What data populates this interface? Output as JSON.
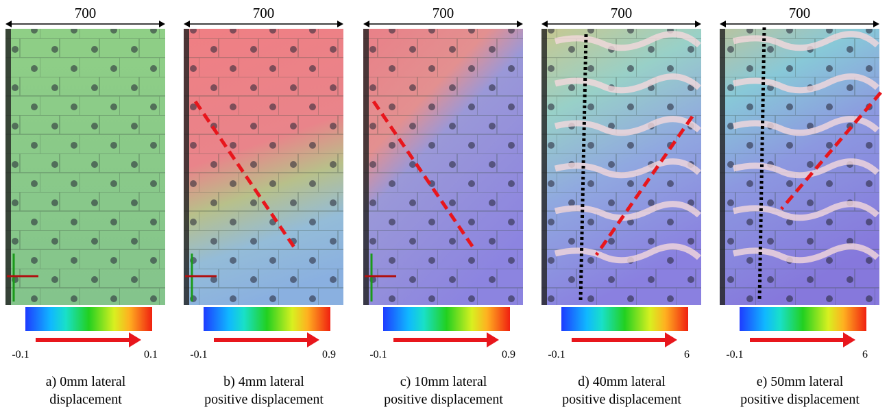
{
  "panels": [
    {
      "dimension": "700",
      "scale_min": "-0.1",
      "scale_max": "0.1",
      "caption": [
        "a) 0mm lateral",
        "displacement"
      ]
    },
    {
      "dimension": "700",
      "scale_min": "-0.1",
      "scale_max": "0.9",
      "caption": [
        "b) 4mm lateral",
        "positive displacement"
      ]
    },
    {
      "dimension": "700",
      "scale_min": "-0.1",
      "scale_max": "0.9",
      "caption": [
        "c) 10mm lateral",
        "positive displacement"
      ]
    },
    {
      "dimension": "700",
      "scale_min": "-0.1",
      "scale_max": "6",
      "caption": [
        "d) 40mm lateral",
        "positive displacement"
      ]
    },
    {
      "dimension": "700",
      "scale_min": "-0.1",
      "scale_max": "6",
      "caption": [
        "e) 50mm lateral",
        "positive displacement"
      ]
    }
  ]
}
